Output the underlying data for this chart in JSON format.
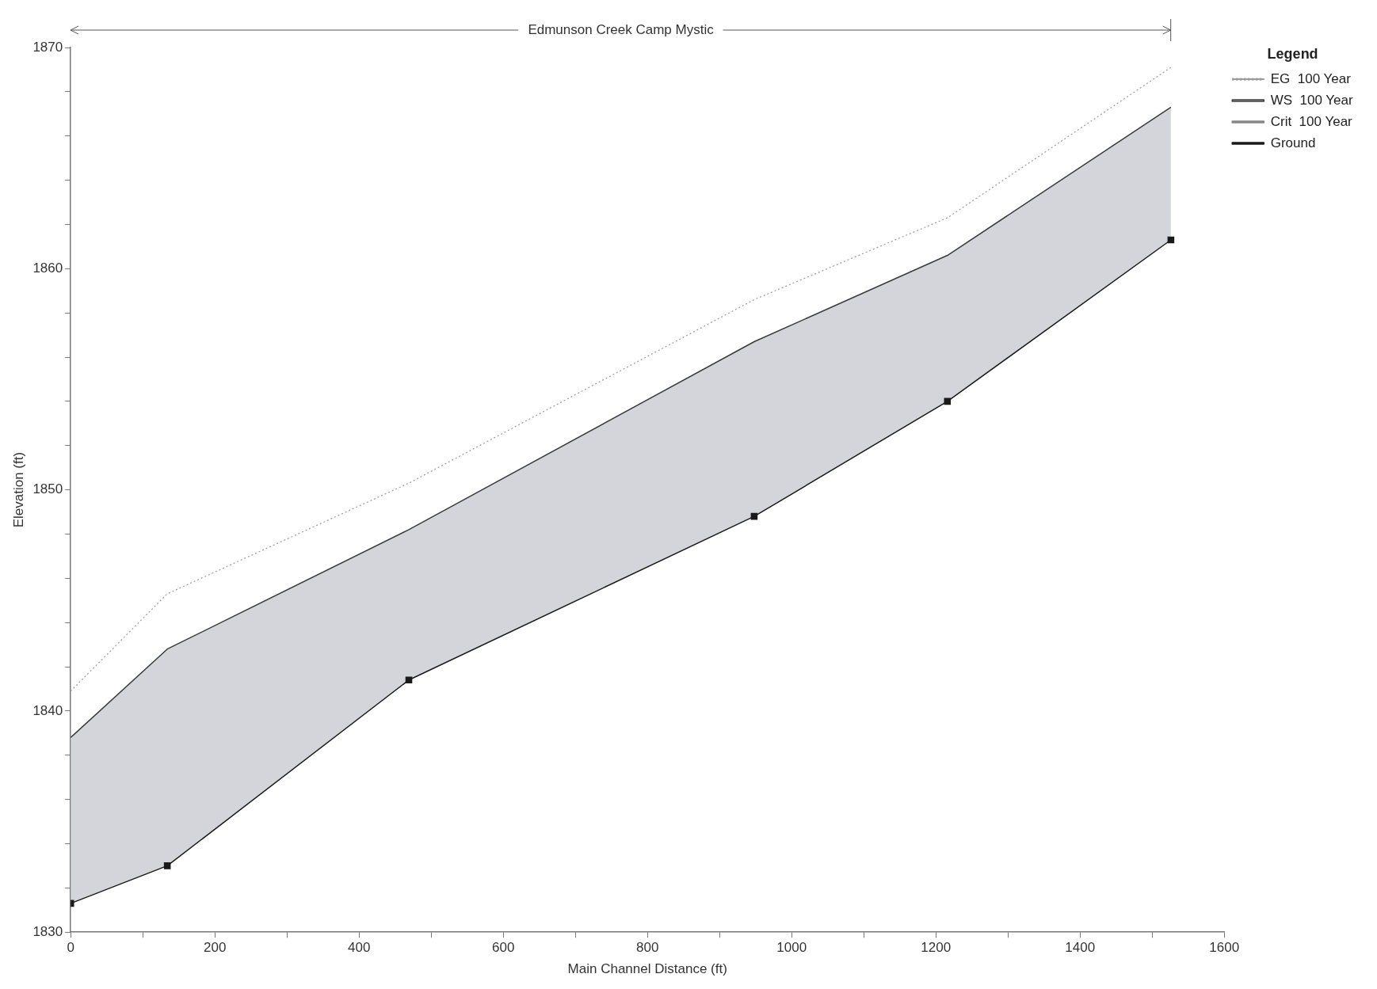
{
  "chart_data": {
    "type": "line",
    "xlabel": "Main Channel Distance (ft)",
    "ylabel": "Elevation (ft)",
    "legend_title": "Legend",
    "legend": "top right",
    "grid": false,
    "annotations": [
      "Edmunson Creek Camp Mystic"
    ],
    "xlim": [
      0,
      1600
    ],
    "ylim": [
      1830,
      1870
    ],
    "xticks": [
      0,
      {
        "value": 100,
        "label": null
      },
      200,
      {
        "value": 300,
        "label": null
      },
      400,
      {
        "value": 500,
        "label": null
      },
      600,
      {
        "value": 700,
        "label": null
      },
      800,
      {
        "value": 900,
        "label": null
      },
      1000,
      {
        "value": 1100,
        "label": null
      },
      1200,
      {
        "value": 1300,
        "label": null
      },
      1400,
      {
        "value": 1500,
        "label": null
      },
      1600
    ],
    "yticks": [
      1830,
      {
        "value": 1832,
        "label": null
      },
      {
        "value": 1834,
        "label": null
      },
      {
        "value": 1836,
        "label": null
      },
      {
        "value": 1838,
        "label": null
      },
      1840,
      {
        "value": 1842,
        "label": null
      },
      {
        "value": 1844,
        "label": null
      },
      {
        "value": 1846,
        "label": null
      },
      {
        "value": 1848,
        "label": null
      },
      1850,
      {
        "value": 1852,
        "label": null
      },
      {
        "value": 1854,
        "label": null
      },
      {
        "value": 1856,
        "label": null
      },
      {
        "value": 1858,
        "label": null
      },
      1860,
      {
        "value": 1862,
        "label": null
      },
      {
        "value": 1864,
        "label": null
      },
      {
        "value": 1866,
        "label": null
      },
      {
        "value": 1868,
        "label": null
      },
      1870
    ],
    "x": [
      0,
      134,
      469,
      948,
      1216,
      1526
    ],
    "series": [
      {
        "name": "EG  100 Year",
        "type": "line",
        "color": "#9a9a9a",
        "line_style": "dotted",
        "marker": "none",
        "values": [
          1840.9,
          1845.3,
          1850.3,
          1858.6,
          1862.3,
          1869.1
        ]
      },
      {
        "name": "WS  100 Year",
        "type": "area",
        "color": "#3a3a3a",
        "marker": "none",
        "values": [
          1838.8,
          1842.8,
          1848.2,
          1856.7,
          1860.6,
          1867.3
        ]
      },
      {
        "name": "Crit  100 Year",
        "type": "line",
        "color": "#888888",
        "marker": "cross",
        "values": [
          null,
          null,
          null,
          null,
          null,
          null
        ]
      },
      {
        "name": "Ground",
        "type": "line",
        "color": "#1a1a1a",
        "marker": "square",
        "values": [
          1831.3,
          1833.0,
          1841.4,
          1848.8,
          1854.0,
          1861.3
        ]
      }
    ]
  }
}
